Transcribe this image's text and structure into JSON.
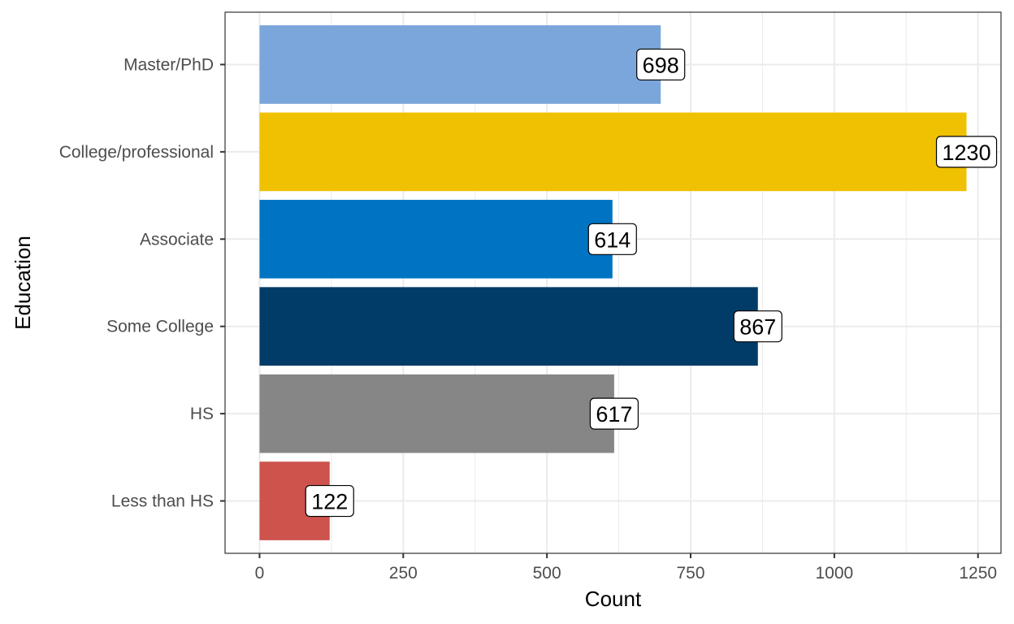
{
  "chart_data": {
    "type": "bar",
    "orientation": "horizontal",
    "categories": [
      "Master/PhD",
      "College/professional",
      "Associate",
      "Some College",
      "HS",
      "Less than HS"
    ],
    "values": [
      698,
      1230,
      614,
      867,
      617,
      122
    ],
    "colors": [
      "#7ba6db",
      "#efc100",
      "#0073c2",
      "#003c67",
      "#868686",
      "#cd534c"
    ],
    "title": "",
    "xlabel": "Count",
    "ylabel": "Education",
    "xlim": [
      -60,
      1290
    ],
    "xticks": [
      0,
      250,
      500,
      750,
      1000,
      1250
    ],
    "xtick_labels": [
      "0",
      "250",
      "500",
      "750",
      "1000",
      "1250"
    ],
    "minor_xticks": [
      125,
      375,
      625,
      875,
      1125
    ],
    "grid": true,
    "legend": "none",
    "data_labels": true
  }
}
